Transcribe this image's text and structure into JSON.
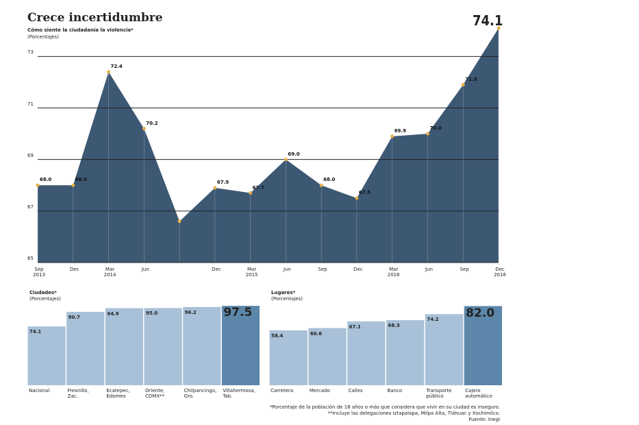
{
  "chart_data": [
    {
      "type": "area",
      "title": "Crece incertidumbre",
      "subtitle": "Cómo siente la ciudadanía la violencia*",
      "note": "(Porcentajes)",
      "categories": [
        "Sep\n2013",
        "Dec",
        "Mar\n2014",
        "Jun",
        null,
        "Dec",
        "Mar\n2015",
        "Jun",
        "Sep",
        "Dec",
        "Mar\n2016",
        "Jun",
        "Sep",
        "Dec\n2016"
      ],
      "values": [
        68.0,
        68.0,
        72.4,
        70.2,
        66.6,
        67.9,
        67.7,
        69.0,
        68.0,
        67.5,
        69.9,
        70.0,
        71.9,
        74.1
      ],
      "value_labels": [
        "68.0",
        "68.0",
        "72.4",
        "70.2",
        null,
        "67.9",
        "67.7",
        "69.0",
        "68.0",
        "67.5",
        "69.9",
        "70.0",
        "71.9",
        "74.1"
      ],
      "color": "#3d5873",
      "ylim": [
        65,
        74.1
      ],
      "yticks": [
        65,
        67,
        69,
        71,
        73
      ],
      "grid": true
    },
    {
      "type": "bar",
      "title": "Ciudades*",
      "subtitle": "(Porcentajes)",
      "categories": [
        "Nacional",
        "Fresnillo,\nZac.",
        "Ecatepec,\nEdomex",
        "Oriente,\nCDMX**",
        "Chilpancingo,\nGro.",
        "Villahermosa,\nTab."
      ],
      "values": [
        74.1,
        90.7,
        94.9,
        95.0,
        96.2,
        97.5
      ],
      "value_labels": [
        "74.1",
        "90.7",
        "94.9",
        "95.0",
        "96.2",
        "97.5"
      ],
      "colors": [
        "#a9c1d8",
        "#a9c1d8",
        "#a9c1d8",
        "#a9c1d8",
        "#a9c1d8",
        "#5c87aa"
      ],
      "ylim": [
        7,
        100
      ]
    },
    {
      "type": "bar",
      "title": "Lugares*",
      "subtitle": "(Porcentajes)",
      "categories": [
        "Carretera",
        "Mercado",
        "Calles",
        "Banco",
        "Transporte\npúblico",
        "Cajero\nautomático"
      ],
      "values": [
        58.4,
        60.6,
        67.1,
        68.3,
        74.2,
        82.0
      ],
      "value_labels": [
        "58.4",
        "60.6",
        "67.1",
        "68.3",
        "74.2",
        "82.0"
      ],
      "colors": [
        "#a9c1d8",
        "#a9c1d8",
        "#a9c1d8",
        "#a9c1d8",
        "#a9c1d8",
        "#5c87aa"
      ],
      "ylim": [
        5,
        85
      ]
    }
  ],
  "footnotes": [
    "*Porcentaje de la población de 18 años o más que considera que vivir en su ciudad es inseguro.",
    "**Incluye las delegaciones Iztapalapa, Milpa Alta, Tláhuac y Xochimilco.",
    "Fuente: Inegi"
  ]
}
